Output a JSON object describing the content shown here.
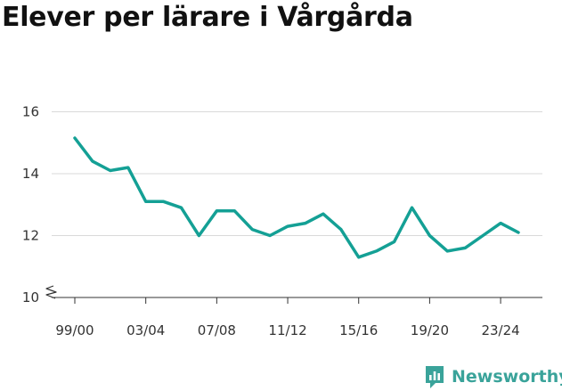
{
  "title": "Elever per lärare i Vårgårda",
  "brand": {
    "name": "Newsworthy",
    "color": "#3aa39a"
  },
  "chart_data": {
    "type": "line",
    "title": "Elever per lärare i Vårgårda",
    "xlabel": "",
    "ylabel": "",
    "ylim": [
      10,
      16.5
    ],
    "y_axis_break": true,
    "yticks": [
      10,
      12,
      14,
      16
    ],
    "grid": true,
    "legend": "none",
    "line_color": "#14a095",
    "x_tick_labels": [
      "99/00",
      "03/04",
      "07/08",
      "11/12",
      "15/16",
      "19/20",
      "23/24"
    ],
    "x_tick_every": 4,
    "series": [
      {
        "values": [
          15.15,
          14.4,
          14.1,
          14.2,
          13.1,
          13.1,
          12.9,
          12.0,
          12.8,
          12.8,
          12.2,
          12.0,
          12.3,
          12.4,
          12.7,
          12.2,
          11.3,
          11.5,
          11.8,
          12.9,
          12.0,
          11.5,
          11.6,
          12.0,
          12.4,
          12.1
        ]
      }
    ]
  }
}
